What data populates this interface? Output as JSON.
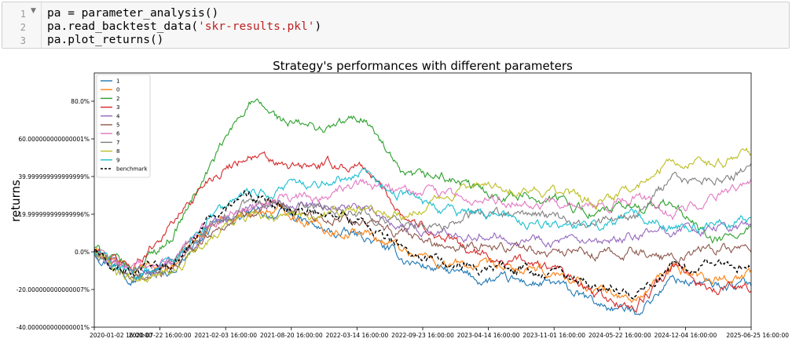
{
  "cell": {
    "line_numbers": [
      "1",
      "2",
      "3"
    ],
    "fold_marker": "▼",
    "lines": [
      {
        "pre": "pa = parameter_analysis()",
        "str": "",
        "post": ""
      },
      {
        "pre": "pa.read_backtest_data(",
        "str": "'skr-results.pkl'",
        "post": ")"
      },
      {
        "pre": "pa.plot_returns()",
        "str": "",
        "post": ""
      }
    ]
  },
  "chart_data": {
    "type": "line",
    "title": "Strategy's performances with different parameters",
    "ylabel": "returns",
    "xlabel": "",
    "ylim": [
      -40,
      95
    ],
    "x_ticks": [
      "2020-01-02 16:00:00",
      "2020-07-22 16:00:00",
      "2021-02-03 16:00:00",
      "2021-08-20 16:00:00",
      "2022-03-14 16:00:00",
      "2022-09-23 16:00:00",
      "2023-04-14 16:00:00",
      "2023-11-01 16:00:00",
      "2024-05-22 16:00:00",
      "2024-12-04 16:00:00",
      "2025-06-25 16:00:00"
    ],
    "y_ticks": [
      {
        "value": -40,
        "label": "-40.000000000000001%"
      },
      {
        "value": -20,
        "label": "-20.000000000000007%"
      },
      {
        "value": 0,
        "label": "0.0%"
      },
      {
        "value": 20,
        "label": "19.999999999999996%"
      },
      {
        "value": 40,
        "label": "39.999999999999999%"
      },
      {
        "value": 60,
        "label": "60.000000000000001%"
      },
      {
        "value": 80,
        "label": "80.0%"
      }
    ],
    "grid": false,
    "legend_position": "top-left",
    "series": [
      {
        "name": "1",
        "color": "#1f77b4",
        "dashed": false,
        "values": [
          0,
          -12,
          -10,
          12,
          20,
          20,
          10,
          8,
          -4,
          -10,
          -15,
          -16,
          -18,
          -28,
          -32,
          -14,
          -18,
          -17
        ]
      },
      {
        "name": "0",
        "color": "#ff7f0e",
        "dashed": false,
        "values": [
          0,
          -10,
          -8,
          14,
          22,
          22,
          12,
          10,
          2,
          -6,
          -8,
          -10,
          -12,
          -20,
          -26,
          -8,
          -14,
          -12
        ]
      },
      {
        "name": "2",
        "color": "#2ca02c",
        "dashed": false,
        "values": [
          2,
          -10,
          8,
          45,
          80,
          68,
          65,
          72,
          38,
          40,
          32,
          30,
          28,
          20,
          24,
          25,
          5,
          10
        ]
      },
      {
        "name": "3",
        "color": "#d62728",
        "dashed": false,
        "values": [
          0,
          -8,
          15,
          40,
          52,
          44,
          46,
          45,
          20,
          8,
          -2,
          -5,
          -10,
          -24,
          -30,
          -8,
          -20,
          -18
        ]
      },
      {
        "name": "4",
        "color": "#9467bd",
        "dashed": false,
        "values": [
          0,
          -12,
          -6,
          14,
          24,
          28,
          25,
          22,
          14,
          10,
          10,
          8,
          6,
          2,
          8,
          12,
          12,
          14
        ]
      },
      {
        "name": "5",
        "color": "#8c564b",
        "dashed": false,
        "values": [
          0,
          -14,
          -10,
          10,
          22,
          22,
          18,
          16,
          8,
          4,
          4,
          2,
          0,
          -2,
          0,
          -4,
          2,
          2
        ]
      },
      {
        "name": "6",
        "color": "#e377c2",
        "dashed": false,
        "values": [
          0,
          -10,
          -5,
          16,
          26,
          28,
          30,
          36,
          32,
          30,
          26,
          28,
          24,
          22,
          30,
          20,
          30,
          34
        ]
      },
      {
        "name": "7",
        "color": "#7f7f7f",
        "dashed": false,
        "values": [
          0,
          -12,
          -6,
          14,
          26,
          26,
          24,
          22,
          14,
          14,
          20,
          20,
          18,
          14,
          18,
          40,
          36,
          46
        ]
      },
      {
        "name": "8",
        "color": "#bcbd22",
        "dashed": false,
        "values": [
          0,
          -16,
          -12,
          8,
          20,
          18,
          20,
          22,
          20,
          28,
          38,
          34,
          32,
          26,
          34,
          50,
          46,
          52
        ]
      },
      {
        "name": "9",
        "color": "#17becf",
        "dashed": false,
        "values": [
          0,
          -12,
          -6,
          18,
          30,
          34,
          38,
          42,
          30,
          22,
          20,
          16,
          14,
          14,
          20,
          14,
          14,
          18
        ]
      },
      {
        "name": "benchmark",
        "color": "#000000",
        "dashed": true,
        "values": [
          0,
          -12,
          -8,
          18,
          30,
          22,
          20,
          16,
          2,
          -6,
          -8,
          -10,
          -12,
          -18,
          -22,
          -6,
          -8,
          -6
        ]
      }
    ]
  }
}
